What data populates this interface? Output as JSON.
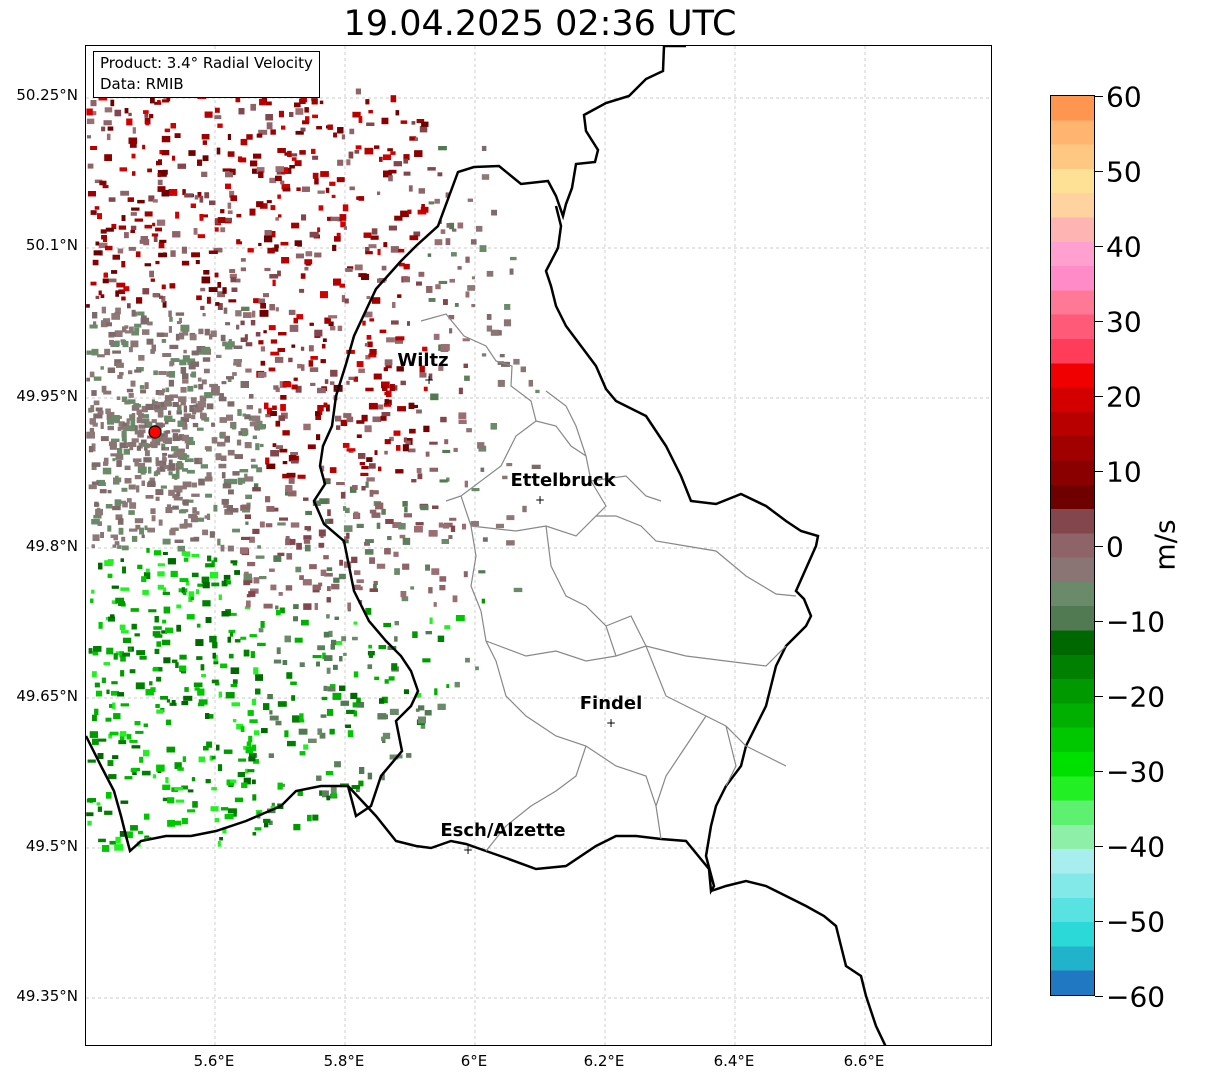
{
  "title": "19.04.2025 02:36 UTC",
  "info": {
    "product": "Product: 3.4° Radial Velocity",
    "data_source": "Data: RMIB"
  },
  "axes": {
    "lat_labels": [
      "50.25°N",
      "50.1°N",
      "49.95°N",
      "49.8°N",
      "49.65°N",
      "49.5°N",
      "49.35°N"
    ],
    "lon_labels": [
      "5.6°E",
      "5.8°E",
      "6°E",
      "6.2°E",
      "6.4°E",
      "6.6°E"
    ]
  },
  "cities": [
    "Wiltz",
    "Ettelbruck",
    "Findel",
    "Esch/Alzette"
  ],
  "colorbar": {
    "unit": "m/s",
    "ticks": [
      "60",
      "50",
      "40",
      "30",
      "20",
      "10",
      "0",
      "−10",
      "−20",
      "−30",
      "−40",
      "−50",
      "−60"
    ],
    "range": [
      -60,
      60
    ],
    "colors": [
      "#1f78c1",
      "#22b3cc",
      "#2bd9d9",
      "#58e2e2",
      "#82e8e8",
      "#a8eeee",
      "#8ef0a8",
      "#5ef070",
      "#22f022",
      "#00e000",
      "#00c800",
      "#00b000",
      "#009a00",
      "#008000",
      "#006800",
      "#527a52",
      "#6a8a6a",
      "#8a7474",
      "#8e6468",
      "#82464c",
      "#6e0000",
      "#8a0000",
      "#a00000",
      "#b80000",
      "#d40000",
      "#f00000",
      "#ff3c5a",
      "#ff5a78",
      "#ff7896",
      "#ff8cc8",
      "#ffa0d0",
      "#ffb4b4",
      "#ffd2a0",
      "#ffe196",
      "#ffc882",
      "#ffb470",
      "#ff9650"
    ]
  },
  "radar_site_color": "#ff0000"
}
